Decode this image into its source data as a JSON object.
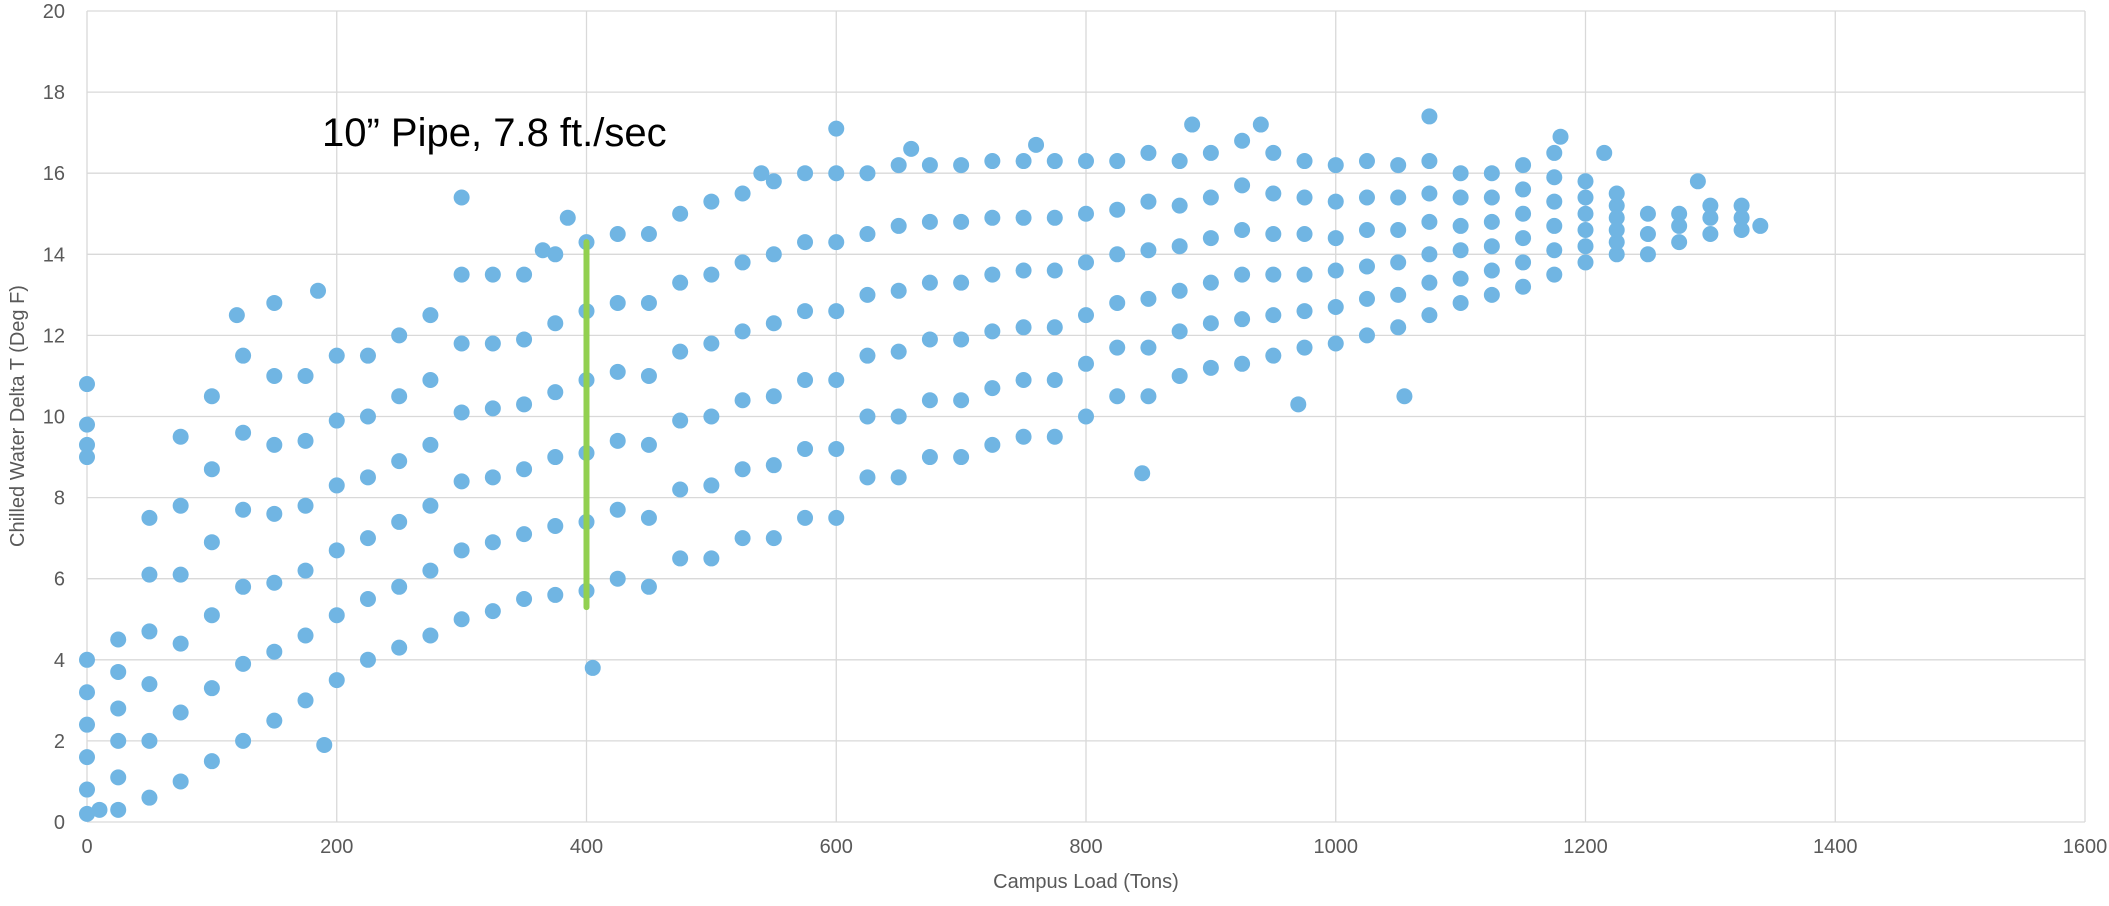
{
  "chart_data": {
    "type": "scatter",
    "annotation": "10” Pipe, 7.8 ft./sec",
    "x_label": "Campus Load (Tons)",
    "y_label": "Chilled Water Delta T (Deg F)",
    "color": "#70b5e3",
    "reference_line": {
      "x": 400,
      "y": [
        5.3,
        14.3
      ],
      "color": "#92d050"
    },
    "xlim": [
      0,
      1600
    ],
    "xticks": [
      0,
      200,
      400,
      600,
      800,
      1000,
      1200,
      1400,
      1600
    ],
    "ylim": [
      0,
      20
    ],
    "yticks": [
      0,
      2,
      4,
      6,
      8,
      10,
      12,
      14,
      16,
      18,
      20
    ],
    "grid": true,
    "x": [
      25,
      25,
      25,
      25,
      25,
      25,
      50,
      50,
      50,
      50,
      50,
      50,
      75,
      75,
      75,
      75,
      75,
      75,
      100,
      100,
      100,
      100,
      100,
      100,
      125,
      125,
      125,
      125,
      125,
      125,
      150,
      150,
      150,
      150,
      150,
      150,
      175,
      175,
      175,
      175,
      175,
      175,
      200,
      200,
      200,
      200,
      200,
      200,
      225,
      225,
      225,
      225,
      225,
      225,
      250,
      250,
      250,
      250,
      250,
      250,
      275,
      275,
      275,
      275,
      275,
      275,
      300,
      300,
      300,
      300,
      300,
      300,
      325,
      325,
      325,
      325,
      325,
      325,
      350,
      350,
      350,
      350,
      350,
      350,
      375,
      375,
      375,
      375,
      375,
      375,
      400,
      400,
      400,
      400,
      400,
      400,
      425,
      425,
      425,
      425,
      425,
      425,
      450,
      450,
      450,
      450,
      450,
      450,
      475,
      475,
      475,
      475,
      475,
      475,
      500,
      500,
      500,
      500,
      500,
      500,
      525,
      525,
      525,
      525,
      525,
      525,
      550,
      550,
      550,
      550,
      550,
      550,
      575,
      575,
      575,
      575,
      575,
      575,
      600,
      600,
      600,
      600,
      600,
      600,
      625,
      625,
      625,
      625,
      625,
      625,
      650,
      650,
      650,
      650,
      650,
      650,
      675,
      675,
      675,
      675,
      675,
      675,
      700,
      700,
      700,
      700,
      700,
      700,
      725,
      725,
      725,
      725,
      725,
      725,
      750,
      750,
      750,
      750,
      750,
      750,
      775,
      775,
      775,
      775,
      775,
      775,
      800,
      800,
      800,
      800,
      800,
      800,
      825,
      825,
      825,
      825,
      825,
      825,
      850,
      850,
      850,
      850,
      850,
      850,
      875,
      875,
      875,
      875,
      875,
      875,
      900,
      900,
      900,
      900,
      900,
      900,
      925,
      925,
      925,
      925,
      925,
      925,
      950,
      950,
      950,
      950,
      950,
      950,
      975,
      975,
      975,
      975,
      975,
      975,
      1000,
      1000,
      1000,
      1000,
      1000,
      1000,
      1025,
      1025,
      1025,
      1025,
      1025,
      1025,
      1050,
      1050,
      1050,
      1050,
      1050,
      1050,
      1075,
      1075,
      1075,
      1075,
      1075,
      1075,
      1100,
      1100,
      1100,
      1100,
      1100,
      1100,
      1125,
      1125,
      1125,
      1125,
      1125,
      1125,
      1150,
      1150,
      1150,
      1150,
      1150,
      1150,
      1175,
      1175,
      1175,
      1175,
      1175,
      1175,
      1200,
      1200,
      1200,
      1200,
      1200,
      1200,
      1225,
      1225,
      1225,
      1225,
      1225,
      1225,
      1250,
      1250,
      1250,
      1275,
      1275,
      1275,
      1300,
      1300,
      1300,
      1325,
      1325,
      1325,
      0,
      0,
      0,
      0,
      0,
      0,
      0,
      0,
      0,
      0,
      10,
      300,
      185,
      190,
      405,
      845,
      1055,
      970,
      1075,
      600,
      885,
      940,
      1180,
      1215,
      1290,
      1340,
      120,
      150,
      365,
      385,
      540,
      660,
      760
    ],
    "values": [
      0.3,
      1.1,
      2.0,
      2.8,
      3.7,
      4.5,
      0.6,
      2.0,
      3.4,
      4.7,
      6.1,
      7.5,
      1,
      2.7,
      4.4,
      6.1,
      7.8,
      9.5,
      1.5,
      3.3,
      5.1,
      6.9,
      8.7,
      10.5,
      2,
      3.9,
      5.8,
      7.7,
      9.6,
      11.5,
      2.5,
      4.2,
      5.9,
      7.6,
      9.3,
      11,
      3,
      4.6,
      6.2,
      7.8,
      9.4,
      11,
      3.5,
      5.1,
      6.7,
      8.3,
      9.9,
      11.5,
      4,
      5.5,
      7,
      8.5,
      10,
      11.5,
      4.3,
      5.8,
      7.4,
      8.9,
      10.5,
      12,
      4.6,
      6.2,
      7.8,
      9.3,
      10.9,
      12.5,
      5,
      6.7,
      8.4,
      10.1,
      11.8,
      13.5,
      5.2,
      6.9,
      8.5,
      10.2,
      11.8,
      13.5,
      5.5,
      7.1,
      8.7,
      10.3,
      11.9,
      13.5,
      5.6,
      7.3,
      9,
      10.6,
      12.3,
      14,
      5.7,
      7.4,
      9.1,
      10.9,
      12.6,
      14.3,
      6,
      7.7,
      9.4,
      11.1,
      12.8,
      14.5,
      5.8,
      7.5,
      9.3,
      11,
      12.8,
      14.5,
      6.5,
      8.2,
      9.9,
      11.6,
      13.3,
      15,
      6.5,
      8.3,
      10,
      11.8,
      13.5,
      15.3,
      7,
      8.7,
      10.4,
      12.1,
      13.8,
      15.5,
      7,
      8.8,
      10.5,
      12.3,
      14,
      15.8,
      7.5,
      9.2,
      10.9,
      12.6,
      14.3,
      16,
      7.5,
      9.2,
      10.9,
      12.6,
      14.3,
      16,
      8.5,
      10,
      11.5,
      13,
      14.5,
      16,
      8.5,
      10,
      11.6,
      13.1,
      14.7,
      16.2,
      9,
      10.4,
      11.9,
      13.3,
      14.8,
      16.2,
      9,
      10.4,
      11.9,
      13.3,
      14.8,
      16.2,
      9.3,
      10.7,
      12.1,
      13.5,
      14.9,
      16.3,
      9.5,
      10.9,
      12.2,
      13.6,
      14.9,
      16.3,
      9.5,
      10.9,
      12.2,
      13.6,
      14.9,
      16.3,
      10,
      11.3,
      12.5,
      13.8,
      15,
      16.3,
      10.5,
      11.7,
      12.8,
      14,
      15.1,
      16.3,
      10.5,
      11.7,
      12.9,
      14.1,
      15.3,
      16.5,
      11,
      12.1,
      13.1,
      14.2,
      15.2,
      16.3,
      11.2,
      12.3,
      13.3,
      14.4,
      15.4,
      16.5,
      11.3,
      12.4,
      13.5,
      14.6,
      15.7,
      16.8,
      11.5,
      12.5,
      13.5,
      14.5,
      15.5,
      16.5,
      11.7,
      12.6,
      13.5,
      14.5,
      15.4,
      16.3,
      11.8,
      12.7,
      13.6,
      14.4,
      15.3,
      16.2,
      12,
      12.9,
      13.7,
      14.6,
      15.4,
      16.3,
      12.2,
      13,
      13.8,
      14.6,
      15.4,
      16.2,
      12.5,
      13.3,
      14,
      14.8,
      15.5,
      16.3,
      12.8,
      13.4,
      14.1,
      14.7,
      15.4,
      16,
      13,
      13.6,
      14.2,
      14.8,
      15.4,
      16,
      13.2,
      13.8,
      14.4,
      15,
      15.6,
      16.2,
      13.5,
      14.1,
      14.7,
      15.3,
      15.9,
      16.5,
      13.8,
      14.2,
      14.6,
      15,
      15.4,
      15.8,
      14,
      14.3,
      14.6,
      14.9,
      15.2,
      15.5,
      14,
      14.5,
      15,
      14.3,
      14.7,
      15,
      14.5,
      14.9,
      15.2,
      14.6,
      14.9,
      15.2,
      10.8,
      9.8,
      9.3,
      9,
      4,
      3.2,
      2.4,
      1.6,
      0.8,
      0.2,
      0.3,
      15.4,
      13.1,
      1.9,
      3.8,
      8.6,
      10.5,
      10.3,
      17.4,
      17.1,
      17.2,
      17.2,
      16.9,
      16.5,
      15.8,
      14.7,
      12.5,
      12.8,
      14.1,
      14.9,
      16,
      16.6,
      16.7
    ]
  }
}
